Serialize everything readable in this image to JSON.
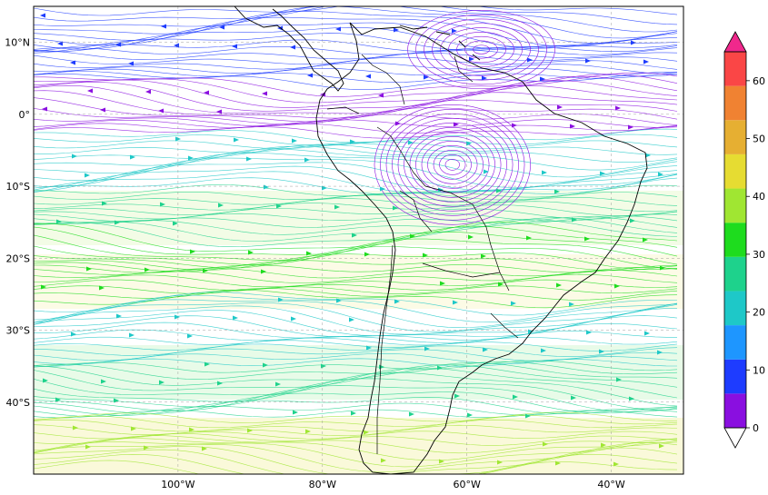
{
  "map": {
    "lon_ticks": [
      "100°W",
      "80°W",
      "60°W",
      "40°W"
    ],
    "lat_ticks": [
      "10°N",
      "0°",
      "10°S",
      "20°S",
      "30°S",
      "40°S"
    ],
    "lon_values": [
      -100,
      -80,
      -60,
      -40
    ],
    "lat_values": [
      10,
      0,
      -10,
      -20,
      -30,
      -40
    ],
    "extent": {
      "lon": [
        -120,
        -30
      ],
      "lat": [
        -50,
        15
      ]
    },
    "gridlines": true,
    "features": [
      "streamlines",
      "coastlines",
      "country-borders",
      "wind-speed-shading"
    ]
  },
  "colorbar": {
    "tick_labels": [
      "0",
      "10",
      "20",
      "30",
      "40",
      "50",
      "60"
    ],
    "tick_values": [
      0,
      10,
      20,
      30,
      40,
      50,
      60
    ],
    "levels": [
      0,
      5,
      10,
      15,
      20,
      25,
      30,
      35,
      40,
      45,
      50,
      55,
      60,
      65
    ],
    "colors": [
      "#8a0fe0",
      "#1e3cff",
      "#1e96ff",
      "#1ec8c8",
      "#1ed28c",
      "#1edc1e",
      "#a0e632",
      "#e6dc32",
      "#e6af32",
      "#f08232",
      "#fa4646"
    ],
    "extend_min_color": "#ffffff",
    "extend_max_color": "#f0288c"
  },
  "streamline_colors": {
    "calm": "#8a0fe0",
    "weak": "#1e3cff",
    "moderate": "#1ec8c8",
    "fresh": "#1ed28c",
    "strong": "#1edc1e",
    "very_strong": "#a0e632",
    "fast": "#e6dc32"
  }
}
